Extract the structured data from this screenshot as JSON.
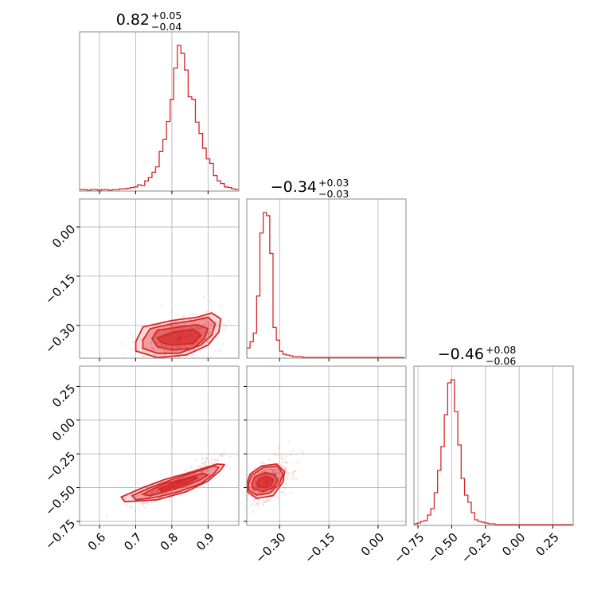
{
  "chart_data": {
    "type": "corner",
    "color": "#d62728",
    "parameters": [
      {
        "title_value": "0.82",
        "title_plus": "+0.05",
        "title_minus": "−0.04",
        "median": 0.82,
        "plus": 0.05,
        "minus": 0.04,
        "range": [
          0.545,
          0.985
        ],
        "ticks": [
          0.6,
          0.7,
          0.8,
          0.9
        ],
        "tick_labels": [
          "0.6",
          "0.7",
          "0.8",
          "0.9"
        ]
      },
      {
        "title_value": "−0.34",
        "title_plus": "+0.03",
        "title_minus": "−0.03",
        "median": -0.34,
        "plus": 0.03,
        "minus": 0.03,
        "range": [
          -0.4,
          0.085
        ],
        "ticks": [
          -0.3,
          -0.15,
          0.0
        ],
        "tick_labels": [
          "−0.30",
          "−0.15",
          "0.00"
        ]
      },
      {
        "title_value": "−0.46",
        "title_plus": "+0.08",
        "title_minus": "−0.06",
        "median": -0.46,
        "plus": 0.08,
        "minus": 0.06,
        "range": [
          -0.78,
          0.4
        ],
        "ticks": [
          -0.75,
          -0.5,
          -0.25,
          0.0,
          0.25
        ],
        "tick_labels": [
          "−0.75",
          "−0.50",
          "−0.25",
          "0.00",
          "0.25"
        ]
      }
    ],
    "histograms": [
      {
        "param": 0,
        "bin_edges": [
          0.545,
          0.555,
          0.565,
          0.575,
          0.585,
          0.595,
          0.605,
          0.615,
          0.625,
          0.635,
          0.645,
          0.655,
          0.665,
          0.675,
          0.685,
          0.695,
          0.705,
          0.715,
          0.725,
          0.735,
          0.745,
          0.755,
          0.765,
          0.775,
          0.785,
          0.795,
          0.805,
          0.815,
          0.825,
          0.835,
          0.845,
          0.855,
          0.865,
          0.875,
          0.885,
          0.895,
          0.905,
          0.915,
          0.925,
          0.935,
          0.945,
          0.955,
          0.965,
          0.975,
          0.985
        ],
        "counts": [
          1,
          1,
          0,
          1,
          1,
          0,
          1,
          1,
          0,
          1,
          1,
          2,
          2,
          3,
          4,
          5,
          8,
          7,
          14,
          19,
          27,
          35,
          58,
          76,
          103,
          136,
          183,
          217,
          205,
          180,
          140,
          136,
          102,
          85,
          63,
          47,
          40,
          22,
          14,
          10,
          5,
          4,
          2,
          1
        ]
      },
      {
        "param": 1,
        "bin_edges": [
          -0.4,
          -0.39,
          -0.38,
          -0.37,
          -0.36,
          -0.35,
          -0.34,
          -0.33,
          -0.32,
          -0.31,
          -0.3,
          -0.29,
          -0.28,
          -0.27,
          -0.26,
          -0.25,
          -0.24,
          -0.23,
          -0.22,
          -0.21,
          -0.2,
          -0.19,
          -0.18,
          -0.17,
          -0.16,
          -0.15,
          -0.14,
          -0.13,
          -0.12,
          -0.11,
          -0.1,
          -0.09,
          -0.08,
          -0.07,
          -0.06,
          -0.05,
          -0.04,
          -0.03,
          -0.02,
          -0.01,
          0.0,
          0.01,
          0.02,
          0.03,
          0.04,
          0.05,
          0.06,
          0.07,
          0.08
        ],
        "counts": [
          12,
          20,
          31,
          78,
          158,
          184,
          180,
          132,
          38,
          22,
          8,
          4,
          3,
          2,
          1,
          1,
          1,
          0,
          0,
          0,
          0,
          0,
          0,
          0,
          0,
          0,
          0,
          0,
          0,
          0,
          0,
          0,
          0,
          0,
          0,
          0,
          0,
          0,
          0,
          0,
          0,
          0,
          0,
          0,
          0,
          0,
          0,
          0
        ]
      },
      {
        "param": 2,
        "bin_edges": [
          -0.78,
          -0.755,
          -0.73,
          -0.705,
          -0.68,
          -0.655,
          -0.63,
          -0.605,
          -0.58,
          -0.555,
          -0.53,
          -0.505,
          -0.48,
          -0.455,
          -0.43,
          -0.405,
          -0.38,
          -0.355,
          -0.33,
          -0.305,
          -0.28,
          -0.255,
          -0.23,
          -0.205,
          -0.18,
          -0.155,
          -0.13,
          -0.105,
          -0.08,
          -0.055,
          -0.03,
          -0.005,
          0.02,
          0.045,
          0.07,
          0.095,
          0.12,
          0.145,
          0.17,
          0.195,
          0.22,
          0.245,
          0.27,
          0.295,
          0.32,
          0.345,
          0.37,
          0.395
        ],
        "counts": [
          1,
          2,
          4,
          5,
          12,
          20,
          40,
          68,
          98,
          138,
          178,
          182,
          142,
          100,
          58,
          37,
          28,
          15,
          6,
          4,
          3,
          2,
          1,
          1,
          0,
          0,
          0,
          0,
          0,
          0,
          0,
          0,
          0,
          0,
          0,
          0,
          0,
          0,
          0,
          0,
          0,
          0,
          0,
          0,
          0,
          0,
          0
        ]
      }
    ],
    "scatter_panels": [
      {
        "x_param": 0,
        "y_param": 1,
        "center": [
          0.82,
          -0.34
        ],
        "sd": [
          0.045,
          0.03
        ],
        "corr": 0.45,
        "contours": [
          {
            "level": 0.5,
            "points": [
              [
                0.76,
                -0.338
              ],
              [
                0.8,
                -0.322
              ],
              [
                0.86,
                -0.312
              ],
              [
                0.88,
                -0.33
              ],
              [
                0.86,
                -0.355
              ],
              [
                0.8,
                -0.36
              ],
              [
                0.77,
                -0.352
              ]
            ]
          },
          {
            "level": 1.0,
            "points": [
              [
                0.745,
                -0.34
              ],
              [
                0.76,
                -0.315
              ],
              [
                0.82,
                -0.305
              ],
              [
                0.87,
                -0.298
              ],
              [
                0.9,
                -0.31
              ],
              [
                0.89,
                -0.34
              ],
              [
                0.86,
                -0.37
              ],
              [
                0.8,
                -0.375
              ],
              [
                0.76,
                -0.365
              ]
            ]
          },
          {
            "level": 1.5,
            "points": [
              [
                0.72,
                -0.345
              ],
              [
                0.74,
                -0.31
              ],
              [
                0.8,
                -0.295
              ],
              [
                0.86,
                -0.285
              ],
              [
                0.9,
                -0.275
              ],
              [
                0.92,
                -0.295
              ],
              [
                0.91,
                -0.33
              ],
              [
                0.88,
                -0.36
              ],
              [
                0.82,
                -0.385
              ],
              [
                0.76,
                -0.385
              ],
              [
                0.72,
                -0.37
              ]
            ]
          },
          {
            "level": 2.0,
            "points": [
              [
                0.7,
                -0.35
              ],
              [
                0.72,
                -0.305
              ],
              [
                0.8,
                -0.285
              ],
              [
                0.87,
                -0.275
              ],
              [
                0.91,
                -0.262
              ],
              [
                0.935,
                -0.28
              ],
              [
                0.93,
                -0.32
              ],
              [
                0.9,
                -0.36
              ],
              [
                0.84,
                -0.39
              ],
              [
                0.76,
                -0.398
              ],
              [
                0.7,
                -0.378
              ]
            ]
          }
        ]
      },
      {
        "x_param": 0,
        "y_param": 2,
        "center": [
          0.82,
          -0.46
        ],
        "sd": [
          0.045,
          0.07
        ],
        "corr": 0.94,
        "contours": [
          {
            "level": 0.5,
            "points": [
              [
                0.77,
                -0.525
              ],
              [
                0.8,
                -0.5
              ],
              [
                0.84,
                -0.47
              ],
              [
                0.87,
                -0.43
              ],
              [
                0.86,
                -0.42
              ],
              [
                0.83,
                -0.445
              ],
              [
                0.79,
                -0.48
              ],
              [
                0.765,
                -0.51
              ]
            ]
          },
          {
            "level": 1.0,
            "points": [
              [
                0.74,
                -0.56
              ],
              [
                0.78,
                -0.53
              ],
              [
                0.84,
                -0.485
              ],
              [
                0.88,
                -0.44
              ],
              [
                0.9,
                -0.405
              ],
              [
                0.885,
                -0.395
              ],
              [
                0.84,
                -0.43
              ],
              [
                0.78,
                -0.47
              ],
              [
                0.74,
                -0.52
              ],
              [
                0.72,
                -0.55
              ]
            ]
          },
          {
            "level": 1.5,
            "points": [
              [
                0.72,
                -0.585
              ],
              [
                0.76,
                -0.57
              ],
              [
                0.82,
                -0.53
              ],
              [
                0.88,
                -0.47
              ],
              [
                0.915,
                -0.4
              ],
              [
                0.93,
                -0.35
              ],
              [
                0.915,
                -0.34
              ],
              [
                0.87,
                -0.38
              ],
              [
                0.8,
                -0.44
              ],
              [
                0.74,
                -0.5
              ],
              [
                0.69,
                -0.56
              ],
              [
                0.7,
                -0.59
              ]
            ]
          },
          {
            "level": 2.0,
            "points": [
              [
                0.7,
                -0.6
              ],
              [
                0.76,
                -0.59
              ],
              [
                0.84,
                -0.53
              ],
              [
                0.9,
                -0.45
              ],
              [
                0.935,
                -0.37
              ],
              [
                0.945,
                -0.33
              ],
              [
                0.925,
                -0.325
              ],
              [
                0.86,
                -0.38
              ],
              [
                0.78,
                -0.44
              ],
              [
                0.72,
                -0.5
              ],
              [
                0.66,
                -0.57
              ],
              [
                0.67,
                -0.605
              ]
            ]
          }
        ]
      },
      {
        "x_param": 1,
        "y_param": 2,
        "center": [
          -0.34,
          -0.46
        ],
        "sd": [
          0.03,
          0.07
        ],
        "corr": 0.5,
        "contours": [
          {
            "level": 0.5,
            "points": [
              [
                -0.37,
                -0.47
              ],
              [
                -0.36,
                -0.43
              ],
              [
                -0.335,
                -0.42
              ],
              [
                -0.32,
                -0.44
              ],
              [
                -0.325,
                -0.48
              ],
              [
                -0.345,
                -0.5
              ],
              [
                -0.365,
                -0.49
              ]
            ]
          },
          {
            "level": 1.0,
            "points": [
              [
                -0.385,
                -0.47
              ],
              [
                -0.375,
                -0.42
              ],
              [
                -0.345,
                -0.39
              ],
              [
                -0.315,
                -0.4
              ],
              [
                -0.305,
                -0.45
              ],
              [
                -0.32,
                -0.5
              ],
              [
                -0.35,
                -0.53
              ],
              [
                -0.38,
                -0.51
              ]
            ]
          },
          {
            "level": 1.5,
            "points": [
              [
                -0.395,
                -0.47
              ],
              [
                -0.385,
                -0.41
              ],
              [
                -0.35,
                -0.35
              ],
              [
                -0.305,
                -0.34
              ],
              [
                -0.29,
                -0.4
              ],
              [
                -0.3,
                -0.47
              ],
              [
                -0.33,
                -0.54
              ],
              [
                -0.37,
                -0.555
              ],
              [
                -0.395,
                -0.52
              ]
            ]
          },
          {
            "level": 2.0,
            "points": [
              [
                -0.398,
                -0.46
              ],
              [
                -0.39,
                -0.4
              ],
              [
                -0.355,
                -0.34
              ],
              [
                -0.31,
                -0.325
              ],
              [
                -0.285,
                -0.38
              ],
              [
                -0.29,
                -0.46
              ],
              [
                -0.32,
                -0.56
              ],
              [
                -0.37,
                -0.58
              ],
              [
                -0.398,
                -0.53
              ]
            ]
          }
        ]
      }
    ],
    "grid": true
  }
}
